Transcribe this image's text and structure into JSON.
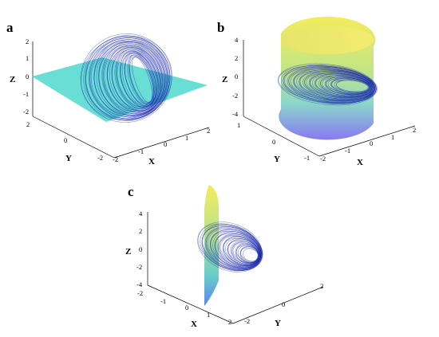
{
  "figure": {
    "panels": [
      {
        "letter": "a",
        "z_label": "Z",
        "y_label": "Y",
        "x_label": "X",
        "surface": "plane Z = 0"
      },
      {
        "letter": "b",
        "z_label": "Z",
        "y_label": "Y",
        "x_label": "X",
        "surface": "cylinder"
      },
      {
        "letter": "c",
        "z_label": "Z",
        "y_label": "Y",
        "x_label": "X",
        "surface": "half-cylinder sheet"
      }
    ],
    "colors": {
      "trajectory": "#1222a8",
      "plane": "#4fd8cc",
      "surface_top": "#f2ea4a",
      "surface_mid": "#8fd8a8",
      "surface_bottom": "#7a6cf0"
    }
  },
  "chart_data": [
    {
      "type": "scatter",
      "panel": "a",
      "title": "",
      "xlabel": "X",
      "ylabel": "Y",
      "zlabel": "Z",
      "xlim": [
        -2,
        2
      ],
      "ylim": [
        -2,
        2
      ],
      "zlim": [
        -2,
        2
      ],
      "x_ticks": [
        "-2",
        "-1",
        "0",
        "1",
        "2"
      ],
      "y_ticks": [
        "2",
        "0",
        "-2"
      ],
      "z_ticks": [
        "2",
        "1",
        "0",
        "-1",
        "-2"
      ],
      "surface": "plane Z = 0"
    },
    {
      "type": "scatter",
      "panel": "b",
      "title": "",
      "xlabel": "X",
      "ylabel": "Y",
      "zlabel": "Z",
      "xlim": [
        -2,
        2
      ],
      "ylim": [
        -1,
        1
      ],
      "zlim": [
        -4,
        4
      ],
      "x_ticks": [
        "-2",
        "-1",
        "0",
        "1",
        "2"
      ],
      "y_ticks": [
        "1",
        "0",
        "-1"
      ],
      "z_ticks": [
        "4",
        "2",
        "0",
        "-2",
        "-4"
      ],
      "surface": "cylinder"
    },
    {
      "type": "scatter",
      "panel": "c",
      "title": "",
      "xlabel": "X",
      "ylabel": "Y",
      "zlabel": "Z",
      "xlim": [
        -2,
        2
      ],
      "ylim": [
        -2,
        2
      ],
      "zlim": [
        -4,
        4
      ],
      "x_ticks": [
        "-2",
        "-1",
        "0",
        "1",
        "2"
      ],
      "y_ticks": [
        "-2",
        "0",
        "2"
      ],
      "z_ticks": [
        "4",
        "2",
        "0",
        "-2",
        "-4"
      ],
      "surface": "half-cylinder sheet"
    }
  ]
}
